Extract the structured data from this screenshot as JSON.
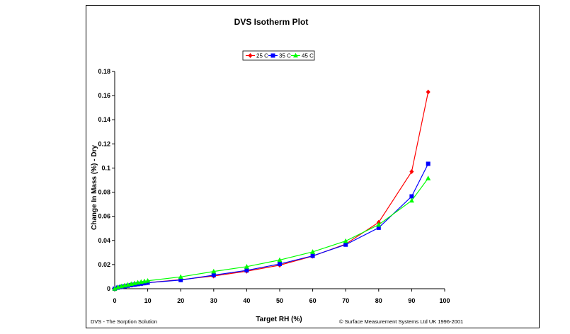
{
  "footer": {
    "left": "DVS - The Sorption Solution",
    "right": "© Surface Measurement Systems Ltd UK 1996-2001"
  },
  "chart_data": {
    "type": "line",
    "title": "DVS Isotherm Plot",
    "xlabel": "Target RH (%)",
    "ylabel": "Change In Mass (%) - Dry",
    "xlim": [
      0,
      100
    ],
    "ylim": [
      0,
      0.18
    ],
    "x_ticks": [
      "0",
      "10",
      "20",
      "30",
      "40",
      "50",
      "60",
      "70",
      "80",
      "90",
      "100"
    ],
    "y_ticks": [
      "0",
      "0.02",
      "0.04",
      "0.06",
      "0.08",
      "0.1",
      "0.12",
      "0.14",
      "0.16",
      "0.18"
    ],
    "legend_position": "top-center",
    "grid": false,
    "series": [
      {
        "name": "25 C",
        "color": "#ff0000",
        "marker": "diamond",
        "x": [
          0,
          1,
          2,
          3,
          4,
          5,
          6,
          7,
          8,
          9,
          10,
          20,
          30,
          40,
          50,
          60,
          70,
          80,
          90,
          95
        ],
        "y": [
          0,
          0.0009,
          0.0015,
          0.002,
          0.0025,
          0.003,
          0.0034,
          0.0038,
          0.0042,
          0.0046,
          0.005,
          0.0075,
          0.0105,
          0.0145,
          0.0195,
          0.027,
          0.037,
          0.055,
          0.097,
          0.163
        ]
      },
      {
        "name": "35 C",
        "color": "#0000ff",
        "marker": "square",
        "x": [
          0,
          1,
          2,
          3,
          4,
          5,
          6,
          7,
          8,
          9,
          10,
          20,
          30,
          40,
          50,
          60,
          70,
          80,
          90,
          95
        ],
        "y": [
          0,
          0.0009,
          0.0015,
          0.002,
          0.0025,
          0.003,
          0.0034,
          0.0038,
          0.0042,
          0.0046,
          0.005,
          0.0072,
          0.0112,
          0.0152,
          0.0205,
          0.0272,
          0.0365,
          0.0505,
          0.0765,
          0.1035
        ]
      },
      {
        "name": "45 C",
        "color": "#00ff00",
        "marker": "triangle",
        "x": [
          0,
          1,
          2,
          3,
          4,
          5,
          6,
          7,
          8,
          9,
          10,
          20,
          30,
          40,
          50,
          60,
          70,
          80,
          90,
          95
        ],
        "y": [
          0,
          0.0013,
          0.002,
          0.0027,
          0.0033,
          0.0039,
          0.0045,
          0.0051,
          0.0056,
          0.0061,
          0.0066,
          0.0098,
          0.0143,
          0.0183,
          0.0238,
          0.0305,
          0.0395,
          0.053,
          0.073,
          0.0915
        ]
      }
    ]
  }
}
